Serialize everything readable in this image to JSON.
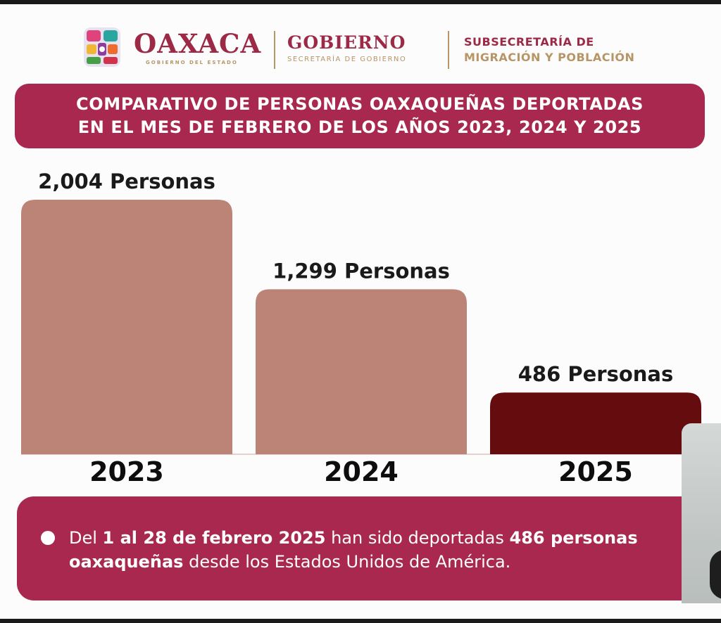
{
  "header": {
    "brand": "OAXACA",
    "brand_sub": "GOBIERNO DEL ESTADO",
    "gov": "GOBIERNO",
    "gov_sub": "SECRETARÍA DE GOBIERNO",
    "subsecretaria_line1": "SUBSECRETARÍA DE",
    "subsecretaria_line2": "MIGRACIÓN Y POBLACIÓN",
    "colors": {
      "primary": "#9c2a47",
      "gold": "#b89565"
    }
  },
  "title": {
    "line1": "COMPARATIVO DE PERSONAS OAXAQUEÑAS DEPORTADAS",
    "line2": "EN EL MES DE FEBRERO DE LOS AÑOS 2023, 2024 Y 2025"
  },
  "chart_data": {
    "type": "bar",
    "categories": [
      "2023",
      "2024",
      "2025"
    ],
    "values": [
      2004,
      1299,
      486
    ],
    "value_labels": [
      "2,004 Personas",
      "1,299 Personas",
      "486 Personas"
    ],
    "bar_colors": [
      "#bc8477",
      "#bc8477",
      "#640c0e"
    ],
    "ylim": [
      0,
      2004
    ],
    "grid": false,
    "legend": "none"
  },
  "note": {
    "pre": "Del ",
    "bold1": "1 al 28 de febrero 2025",
    "mid": " han sido deportadas ",
    "bold2": "486 personas oaxaqueñas",
    "post": " desde los Estados Unidos de América.",
    "bullet_color": "#ffffff"
  }
}
